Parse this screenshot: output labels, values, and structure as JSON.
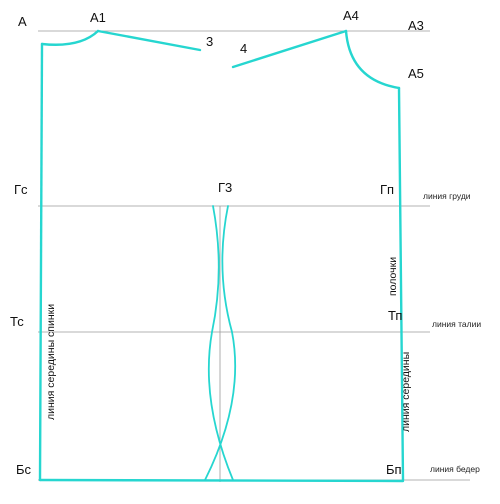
{
  "colors": {
    "pattern_line": "#26d6d0",
    "guide_line": "#9a9a9a",
    "text": "#111111",
    "background": "#ffffff"
  },
  "points": {
    "a": "А",
    "a1": "А1",
    "a3": "А3",
    "a4": "А4",
    "a5": "А5",
    "three": "3",
    "four": "4",
    "gs": "Гс",
    "g3": "Г3",
    "gp": "Гп",
    "ts": "Тс",
    "tp": "Тп",
    "bs": "Бс",
    "bp": "Бп"
  },
  "lines": {
    "chest": "линия груди",
    "waist": "линия талии",
    "hip": "линия бедер",
    "back_center": "линия середины спинки",
    "front_center_top": "полочки",
    "front_center_bottom": "линия середины"
  }
}
